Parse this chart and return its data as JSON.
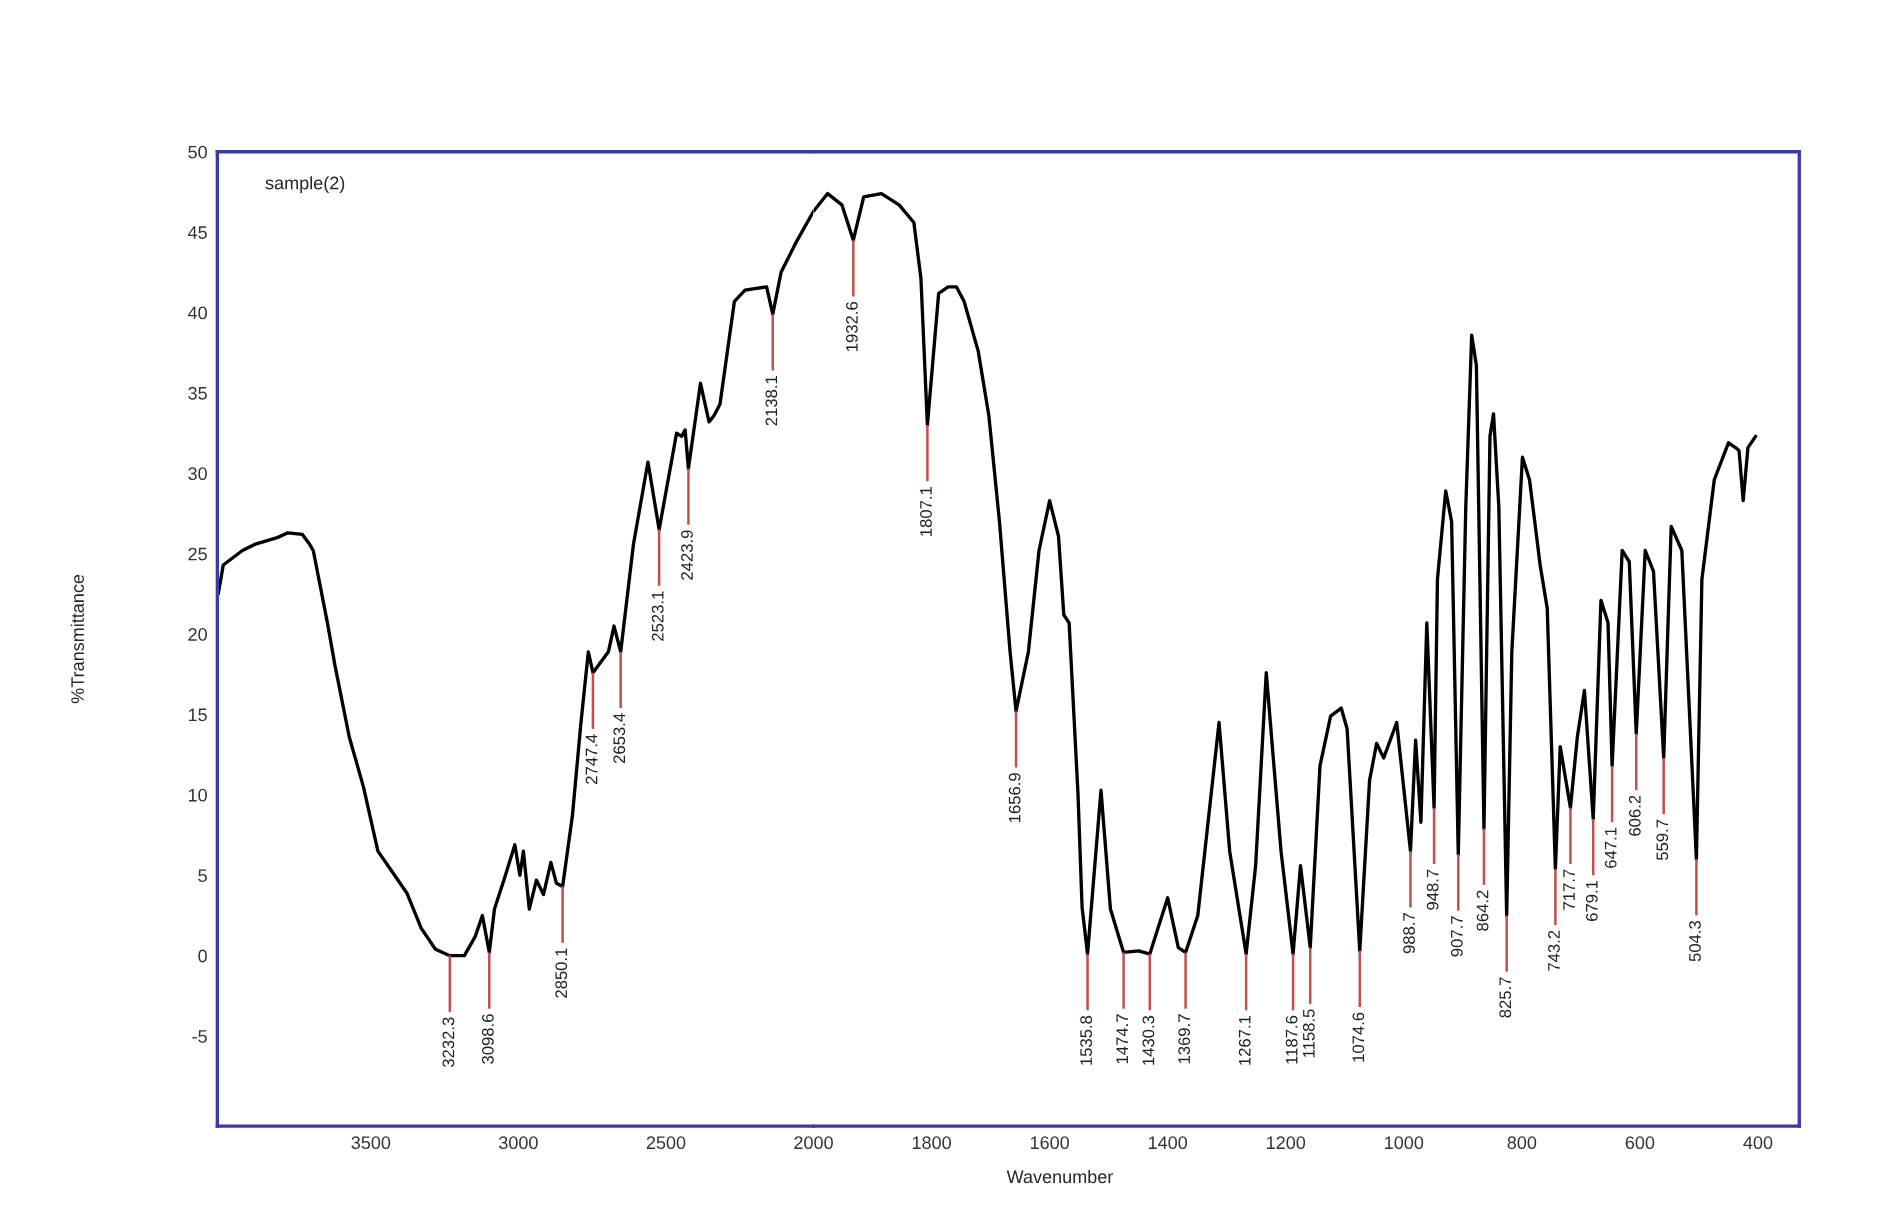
{
  "chart_data": [
    {
      "type": "line",
      "ylabel": "%Transmittance",
      "xlim": [
        4020,
        2000
      ],
      "xticks": [
        3500,
        3000,
        2500
      ],
      "ylim": [
        -10.6,
        50
      ],
      "yticks": [
        -5,
        0,
        5,
        10,
        15,
        20,
        25,
        30,
        35,
        40,
        45,
        50
      ],
      "grid": false,
      "marker": "none",
      "line_style": "solid",
      "series": [
        {
          "color": "#000000",
          "x": [
            4017,
            4000,
            3935,
            3891,
            3817,
            3781,
            3732,
            3708,
            3695,
            3647,
            3622,
            3573,
            3525,
            3476,
            3427,
            3378,
            3329,
            3281,
            3232.3,
            3183,
            3146,
            3122,
            3098.6,
            3081,
            3049,
            3012,
            2995,
            2983,
            2963,
            2939,
            2915,
            2890,
            2871,
            2850.1,
            2817,
            2788,
            2763,
            2747.4,
            2695,
            2676,
            2653.4,
            2610,
            2561,
            2523.1,
            2464,
            2447,
            2435,
            2423.9,
            2383,
            2354,
            2337,
            2317,
            2268,
            2232,
            2159,
            2138.1,
            2110,
            2061,
            2000
          ],
          "values": [
            22.5,
            24.3,
            25.2,
            25.6,
            26.0,
            26.3,
            26.2,
            25.6,
            25.2,
            20.7,
            18.1,
            13.6,
            10.5,
            6.5,
            5.2,
            3.9,
            1.7,
            0.4,
            0.0,
            0.0,
            1.2,
            2.5,
            0.2,
            2.9,
            4.7,
            6.9,
            5.0,
            6.5,
            2.9,
            4.7,
            3.8,
            5.8,
            4.5,
            4.3,
            8.7,
            14.5,
            18.9,
            17.6,
            18.9,
            20.5,
            18.9,
            25.6,
            30.7,
            26.5,
            32.5,
            32.3,
            32.7,
            30.3,
            35.6,
            33.2,
            33.6,
            34.3,
            40.7,
            41.4,
            41.6,
            39.9,
            42.5,
            44.3,
            46.3
          ]
        }
      ],
      "annotations": [
        "sample(2)",
        {
          "text": "3232.3",
          "x": 3232.3,
          "y": 0.0
        },
        {
          "text": "3098.6",
          "x": 3098.6,
          "y": 0.2
        },
        {
          "text": "2850.1",
          "x": 2850.1,
          "y": 4.3
        },
        {
          "text": "2747.4",
          "x": 2747.4,
          "y": 17.6
        },
        {
          "text": "2653.4",
          "x": 2653.4,
          "y": 18.9
        },
        {
          "text": "2523.1",
          "x": 2523.1,
          "y": 26.5
        },
        {
          "text": "2423.9",
          "x": 2423.9,
          "y": 30.3
        },
        {
          "text": "2138.1",
          "x": 2138.1,
          "y": 39.9
        }
      ]
    },
    {
      "type": "line",
      "xlabel": "Wavenumber",
      "tick_labels": "x",
      "xlim": [
        2000,
        330
      ],
      "xticks": [
        2000,
        1800,
        1600,
        1400,
        1200,
        1000,
        800,
        600,
        400
      ],
      "ylim": [
        -10.6,
        50
      ],
      "grid": false,
      "marker": "none",
      "line_style": "solid",
      "series": [
        {
          "color": "#000000",
          "x": [
            2000,
            1976,
            1952,
            1932.6,
            1915,
            1885,
            1855,
            1830,
            1818,
            1807.1,
            1788,
            1772,
            1758,
            1745,
            1721,
            1703,
            1685,
            1667,
            1656.9,
            1636,
            1618,
            1600,
            1585,
            1576,
            1567,
            1552,
            1545,
            1535.8,
            1513,
            1497,
            1474.7,
            1449,
            1430.3,
            1400,
            1382,
            1369.7,
            1349,
            1313,
            1295,
            1267.1,
            1251,
            1233,
            1220,
            1208,
            1187.6,
            1175,
            1158.5,
            1142,
            1124,
            1106,
            1096,
            1074.6,
            1058,
            1046,
            1034,
            1012,
            988.7,
            980,
            971,
            961,
            948.7,
            943,
            929,
            919,
            907.7,
            895,
            885,
            877,
            864.2,
            854,
            848,
            839,
            825.7,
            817,
            799,
            787,
            769,
            757,
            743.2,
            735,
            717.7,
            706,
            694,
            679.1,
            666,
            654,
            647.1,
            630,
            618,
            606.2,
            591,
            577,
            559.7,
            547,
            529,
            504.3,
            495,
            474,
            450,
            438,
            432,
            425,
            417,
            404
          ],
          "values": [
            46.3,
            47.4,
            46.7,
            44.5,
            47.2,
            47.4,
            46.7,
            45.6,
            42.1,
            33.0,
            41.2,
            41.6,
            41.6,
            40.7,
            37.6,
            33.6,
            27.0,
            18.9,
            15.2,
            18.9,
            25.2,
            28.3,
            26.1,
            21.2,
            20.7,
            10.1,
            3.0,
            0.1,
            10.3,
            2.9,
            0.2,
            0.3,
            0.1,
            3.6,
            0.5,
            0.2,
            2.5,
            14.5,
            6.5,
            0.1,
            5.6,
            17.6,
            11.8,
            6.5,
            0.1,
            5.6,
            0.5,
            11.8,
            14.9,
            15.4,
            14.1,
            0.3,
            10.9,
            13.2,
            12.3,
            14.5,
            6.5,
            13.4,
            8.3,
            20.7,
            9.2,
            23.4,
            28.9,
            27.0,
            6.3,
            27.9,
            38.6,
            36.7,
            7.9,
            32.3,
            33.7,
            27.9,
            2.5,
            18.9,
            31.0,
            29.6,
            24.3,
            21.6,
            5.4,
            13.0,
            9.2,
            13.6,
            16.5,
            8.5,
            22.1,
            20.7,
            11.8,
            25.2,
            24.5,
            13.8,
            25.2,
            23.9,
            12.3,
            26.7,
            25.2,
            6.0,
            23.4,
            29.6,
            31.9,
            31.6,
            31.4,
            28.3,
            31.6,
            32.3
          ]
        }
      ],
      "annotations": [
        {
          "text": "1932.6",
          "x": 1932.6,
          "y": 44.5
        },
        {
          "text": "1807.1",
          "x": 1807.1,
          "y": 33.0
        },
        {
          "text": "1656.9",
          "x": 1656.9,
          "y": 15.2
        },
        {
          "text": "1535.8",
          "x": 1535.8,
          "y": 0.1
        },
        {
          "text": "1474.7",
          "x": 1474.7,
          "y": 0.2
        },
        {
          "text": "1430.3",
          "x": 1430.3,
          "y": 0.1
        },
        {
          "text": "1369.7",
          "x": 1369.7,
          "y": 0.2
        },
        {
          "text": "1267.1",
          "x": 1267.1,
          "y": 0.1
        },
        {
          "text": "1187.6",
          "x": 1187.6,
          "y": 0.1
        },
        {
          "text": "1158.5",
          "x": 1158.5,
          "y": 0.5
        },
        {
          "text": "1074.6",
          "x": 1074.6,
          "y": 0.3
        },
        {
          "text": "988.7",
          "x": 988.7,
          "y": 6.5
        },
        {
          "text": "948.7",
          "x": 948.7,
          "y": 9.2
        },
        {
          "text": "907.7",
          "x": 907.7,
          "y": 6.3
        },
        {
          "text": "864.2",
          "x": 864.2,
          "y": 7.9
        },
        {
          "text": "825.7",
          "x": 825.7,
          "y": 2.5
        },
        {
          "text": "743.2",
          "x": 743.2,
          "y": 5.4
        },
        {
          "text": "717.7",
          "x": 717.7,
          "y": 9.2
        },
        {
          "text": "679.1",
          "x": 679.1,
          "y": 8.5
        },
        {
          "text": "647.1",
          "x": 647.1,
          "y": 11.8
        },
        {
          "text": "606.2",
          "x": 606.2,
          "y": 13.8
        },
        {
          "text": "559.7",
          "x": 559.7,
          "y": 12.3
        },
        {
          "text": "504.3",
          "x": 504.3,
          "y": 6.0
        }
      ]
    }
  ]
}
